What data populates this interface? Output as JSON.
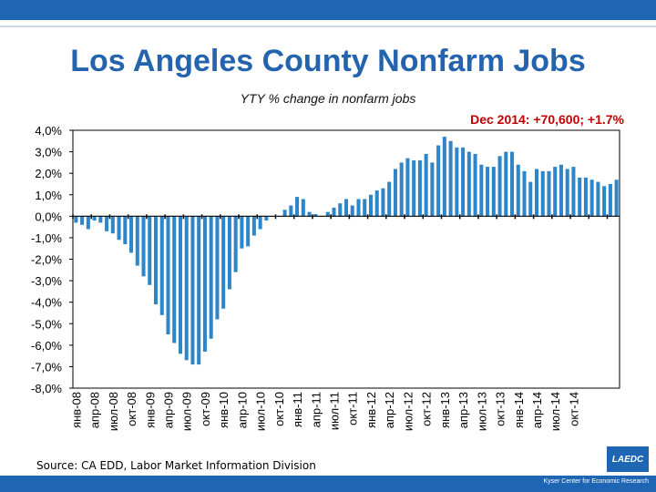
{
  "header": {
    "title": "Los Angeles County Nonfarm Jobs",
    "subtitle": "YTY % change in nonfarm jobs",
    "annotation": "Dec 2014: +70,600; +1.7%"
  },
  "footer": {
    "source": "Source: CA EDD, Labor Market Information Division",
    "credit": "Kyser Center for Economic Research",
    "logo_text": "LAEDC"
  },
  "colors": {
    "bar": "#2e86c8",
    "accent": "#1e66b4",
    "title": "#2463ad",
    "annotation": "#c00000"
  },
  "chart_data": {
    "type": "bar",
    "ylim": [
      -8,
      4
    ],
    "yticks": [
      "4,0%",
      "3,0%",
      "2,0%",
      "1,0%",
      "0,0%",
      "-1,0%",
      "-2,0%",
      "-3,0%",
      "-4,0%",
      "-5,0%",
      "-6,0%",
      "-7,0%",
      "-8,0%"
    ],
    "xticks": [
      "янв-08",
      "апр-08",
      "июл-08",
      "окт-08",
      "янв-09",
      "апр-09",
      "июл-09",
      "окт-09",
      "янв-10",
      "апр-10",
      "июл-10",
      "окт-10",
      "янв-11",
      "апр-11",
      "июл-11",
      "окт-11",
      "янв-12",
      "апр-12",
      "июл-12",
      "окт-12",
      "янв-13",
      "апр-13",
      "июл-13",
      "окт-13",
      "янв-14",
      "апр-14",
      "июл-14",
      "окт-14"
    ],
    "values": [
      -0.3,
      -0.4,
      -0.6,
      -0.2,
      -0.3,
      -0.7,
      -0.8,
      -1.1,
      -1.3,
      -1.7,
      -2.3,
      -2.8,
      -3.2,
      -4.1,
      -4.6,
      -5.5,
      -5.9,
      -6.4,
      -6.7,
      -6.9,
      -6.9,
      -6.3,
      -5.7,
      -4.8,
      -4.3,
      -3.4,
      -2.6,
      -1.5,
      -1.4,
      -0.9,
      -0.6,
      -0.2,
      0.0,
      0.0,
      0.3,
      0.5,
      0.9,
      0.8,
      0.2,
      0.1,
      0.0,
      0.2,
      0.4,
      0.6,
      0.8,
      0.5,
      0.8,
      0.8,
      1.0,
      1.2,
      1.3,
      1.6,
      2.2,
      2.5,
      2.7,
      2.6,
      2.6,
      2.9,
      2.5,
      3.3,
      3.7,
      3.5,
      3.2,
      3.2,
      3.0,
      2.9,
      2.4,
      2.3,
      2.3,
      2.8,
      3.0,
      3.0,
      2.4,
      2.1,
      1.6,
      2.2,
      2.1,
      2.1,
      2.3,
      2.4,
      2.2,
      2.3,
      1.8,
      1.8,
      1.7,
      1.6,
      1.4,
      1.5,
      1.7
    ]
  }
}
